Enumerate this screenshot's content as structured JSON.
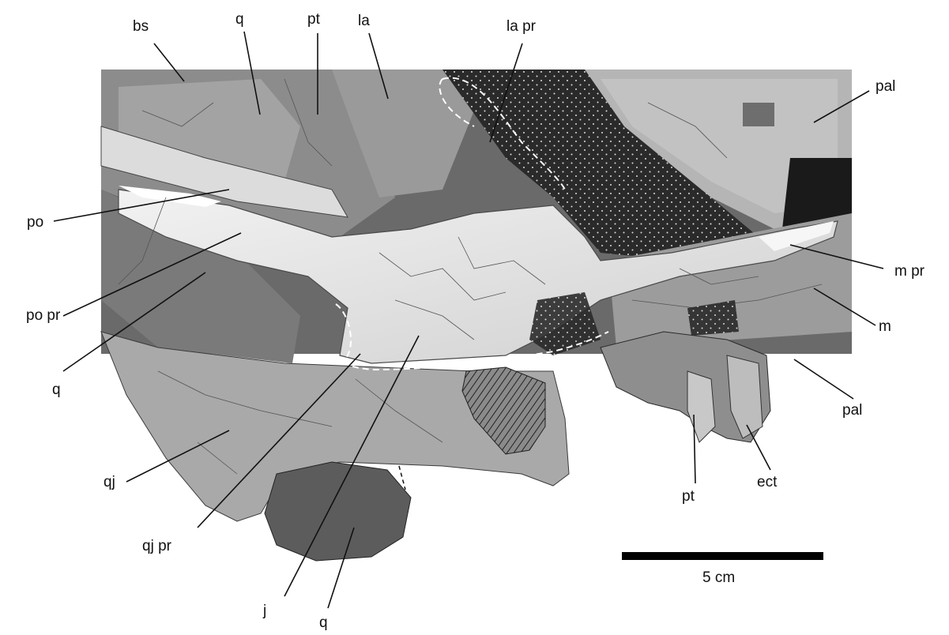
{
  "labels": {
    "bs": "bs",
    "q_top": "q",
    "pt_top": "pt",
    "la": "la",
    "la_pr": "la pr",
    "pal_top": "pal",
    "po": "po",
    "po_pr": "po pr",
    "q_left": "q",
    "qj": "qj",
    "qj_pr": "qj pr",
    "j": "j",
    "q_bottom": "q",
    "m_pr": "m pr",
    "m": "m",
    "pal_right": "pal",
    "pt_bottom": "pt",
    "ect": "ect"
  },
  "scale_bar": {
    "label": "5 cm"
  }
}
